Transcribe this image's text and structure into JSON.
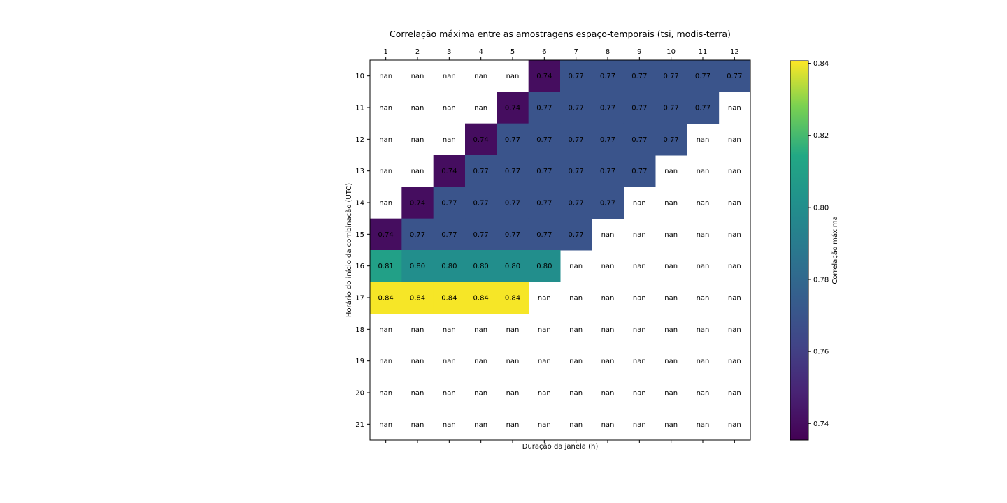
{
  "chart_data": {
    "type": "heatmap",
    "title": "Correlação máxima entre as amostragens espaço-temporais (tsi, modis-terra)",
    "xlabel": "Duração da janela (h)",
    "ylabel": "Horário do início da combinação (UTC)",
    "x": [
      "1",
      "2",
      "3",
      "4",
      "5",
      "6",
      "7",
      "8",
      "9",
      "10",
      "11",
      "12"
    ],
    "y": [
      "10",
      "11",
      "12",
      "13",
      "14",
      "15",
      "16",
      "17",
      "18",
      "19",
      "20",
      "21"
    ],
    "values": [
      [
        null,
        null,
        null,
        null,
        null,
        0.74,
        0.77,
        0.77,
        0.77,
        0.77,
        0.77,
        0.77
      ],
      [
        null,
        null,
        null,
        null,
        0.74,
        0.77,
        0.77,
        0.77,
        0.77,
        0.77,
        0.77,
        null
      ],
      [
        null,
        null,
        null,
        0.74,
        0.77,
        0.77,
        0.77,
        0.77,
        0.77,
        0.77,
        null,
        null
      ],
      [
        null,
        null,
        0.74,
        0.77,
        0.77,
        0.77,
        0.77,
        0.77,
        0.77,
        null,
        null,
        null
      ],
      [
        null,
        0.74,
        0.77,
        0.77,
        0.77,
        0.77,
        0.77,
        0.77,
        null,
        null,
        null,
        null
      ],
      [
        0.74,
        0.77,
        0.77,
        0.77,
        0.77,
        0.77,
        0.77,
        null,
        null,
        null,
        null,
        null
      ],
      [
        0.81,
        0.8,
        0.8,
        0.8,
        0.8,
        0.8,
        null,
        null,
        null,
        null,
        null,
        null
      ],
      [
        0.84,
        0.84,
        0.84,
        0.84,
        0.84,
        null,
        null,
        null,
        null,
        null,
        null,
        null
      ],
      [
        null,
        null,
        null,
        null,
        null,
        null,
        null,
        null,
        null,
        null,
        null,
        null
      ],
      [
        null,
        null,
        null,
        null,
        null,
        null,
        null,
        null,
        null,
        null,
        null,
        null
      ],
      [
        null,
        null,
        null,
        null,
        null,
        null,
        null,
        null,
        null,
        null,
        null,
        null
      ],
      [
        null,
        null,
        null,
        null,
        null,
        null,
        null,
        null,
        null,
        null,
        null,
        null
      ]
    ],
    "cell_labels": [
      [
        "nan",
        "nan",
        "nan",
        "nan",
        "nan",
        "0.74",
        "0.77",
        "0.77",
        "0.77",
        "0.77",
        "0.77",
        "0.77"
      ],
      [
        "nan",
        "nan",
        "nan",
        "nan",
        "0.74",
        "0.77",
        "0.77",
        "0.77",
        "0.77",
        "0.77",
        "0.77",
        "nan"
      ],
      [
        "nan",
        "nan",
        "nan",
        "0.74",
        "0.77",
        "0.77",
        "0.77",
        "0.77",
        "0.77",
        "0.77",
        "nan",
        "nan"
      ],
      [
        "nan",
        "nan",
        "0.74",
        "0.77",
        "0.77",
        "0.77",
        "0.77",
        "0.77",
        "0.77",
        "nan",
        "nan",
        "nan"
      ],
      [
        "nan",
        "0.74",
        "0.77",
        "0.77",
        "0.77",
        "0.77",
        "0.77",
        "0.77",
        "nan",
        "nan",
        "nan",
        "nan"
      ],
      [
        "0.74",
        "0.77",
        "0.77",
        "0.77",
        "0.77",
        "0.77",
        "0.77",
        "nan",
        "nan",
        "nan",
        "nan",
        "nan"
      ],
      [
        "0.81",
        "0.80",
        "0.80",
        "0.80",
        "0.80",
        "0.80",
        "nan",
        "nan",
        "nan",
        "nan",
        "nan",
        "nan"
      ],
      [
        "0.84",
        "0.84",
        "0.84",
        "0.84",
        "0.84",
        "nan",
        "nan",
        "nan",
        "nan",
        "nan",
        "nan",
        "nan"
      ],
      [
        "nan",
        "nan",
        "nan",
        "nan",
        "nan",
        "nan",
        "nan",
        "nan",
        "nan",
        "nan",
        "nan",
        "nan"
      ],
      [
        "nan",
        "nan",
        "nan",
        "nan",
        "nan",
        "nan",
        "nan",
        "nan",
        "nan",
        "nan",
        "nan",
        "nan"
      ],
      [
        "nan",
        "nan",
        "nan",
        "nan",
        "nan",
        "nan",
        "nan",
        "nan",
        "nan",
        "nan",
        "nan",
        "nan"
      ],
      [
        "nan",
        "nan",
        "nan",
        "nan",
        "nan",
        "nan",
        "nan",
        "nan",
        "nan",
        "nan",
        "nan",
        "nan"
      ]
    ],
    "colormap": "viridis",
    "color_range": [
      0.7354,
      0.8407
    ],
    "colorbar": {
      "label": "Correlação máxima",
      "ticks": [
        0.74,
        0.76,
        0.78,
        0.8,
        0.82,
        0.84
      ],
      "tick_labels": [
        "0.74",
        "0.76",
        "0.78",
        "0.80",
        "0.82",
        "0.84"
      ]
    },
    "x_axis_position": "top",
    "grid": false
  }
}
